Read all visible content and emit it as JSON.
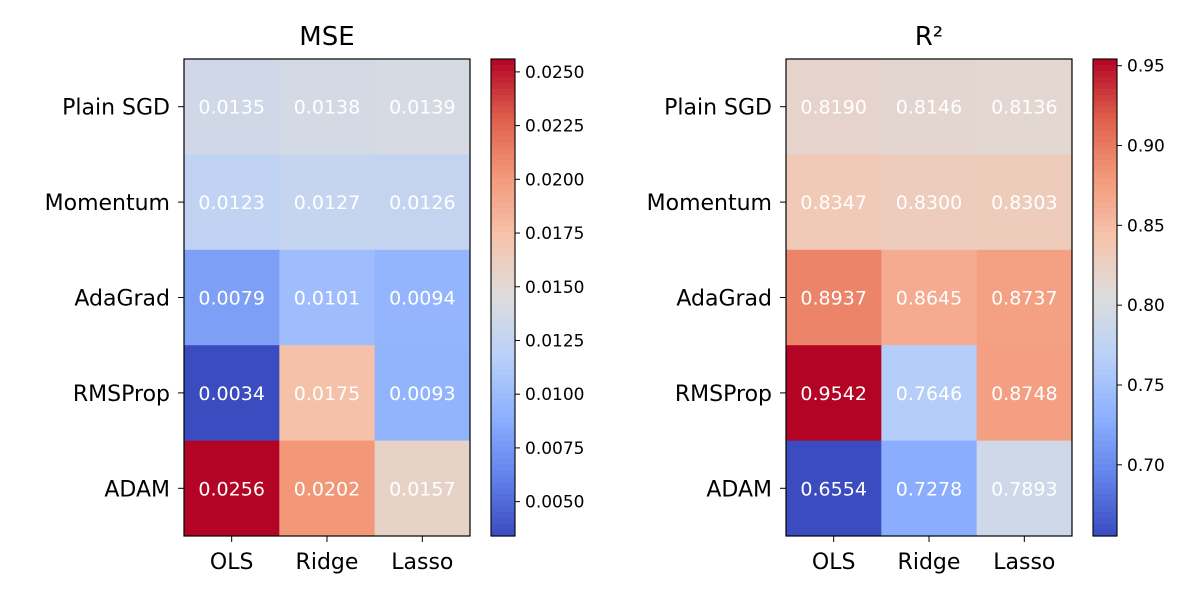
{
  "chart_data": [
    {
      "type": "heatmap",
      "title": "MSE",
      "rows": [
        "Plain SGD",
        "Momentum",
        "AdaGrad",
        "RMSProp",
        "ADAM"
      ],
      "columns": [
        "OLS",
        "Ridge",
        "Lasso"
      ],
      "values": [
        [
          0.0135,
          0.0138,
          0.0139
        ],
        [
          0.0123,
          0.0127,
          0.0126
        ],
        [
          0.0079,
          0.0101,
          0.0094
        ],
        [
          0.0034,
          0.0175,
          0.0093
        ],
        [
          0.0256,
          0.0202,
          0.0157
        ]
      ],
      "cell_labels": [
        [
          "0.0135",
          "0.0138",
          "0.0139"
        ],
        [
          "0.0123",
          "0.0127",
          "0.0126"
        ],
        [
          "0.0079",
          "0.0101",
          "0.0094"
        ],
        [
          "0.0034",
          "0.0175",
          "0.0093"
        ],
        [
          "0.0256",
          "0.0202",
          "0.0157"
        ]
      ],
      "colormap": "coolwarm",
      "colorbar": {
        "range": [
          0.0034,
          0.0256
        ],
        "ticks": [
          0.005,
          0.0075,
          0.01,
          0.0125,
          0.015,
          0.0175,
          0.02,
          0.0225,
          0.025
        ],
        "tick_labels": [
          "0.0050",
          "0.0075",
          "0.0100",
          "0.0125",
          "0.0150",
          "0.0175",
          "0.0200",
          "0.0225",
          "0.0250"
        ]
      }
    },
    {
      "type": "heatmap",
      "title": "R²",
      "rows": [
        "Plain SGD",
        "Momentum",
        "AdaGrad",
        "RMSProp",
        "ADAM"
      ],
      "columns": [
        "OLS",
        "Ridge",
        "Lasso"
      ],
      "values": [
        [
          0.819,
          0.8146,
          0.8136
        ],
        [
          0.8347,
          0.83,
          0.8303
        ],
        [
          0.8937,
          0.8645,
          0.8737
        ],
        [
          0.9542,
          0.7646,
          0.8748
        ],
        [
          0.6554,
          0.7278,
          0.7893
        ]
      ],
      "cell_labels": [
        [
          "0.8190",
          "0.8146",
          "0.8136"
        ],
        [
          "0.8347",
          "0.8300",
          "0.8303"
        ],
        [
          "0.8937",
          "0.8645",
          "0.8737"
        ],
        [
          "0.9542",
          "0.7646",
          "0.8748"
        ],
        [
          "0.6554",
          "0.7278",
          "0.7893"
        ]
      ],
      "colormap": "coolwarm",
      "colorbar": {
        "range": [
          0.6554,
          0.9542
        ],
        "ticks": [
          0.7,
          0.75,
          0.8,
          0.85,
          0.9,
          0.95
        ],
        "tick_labels": [
          "0.70",
          "0.75",
          "0.80",
          "0.85",
          "0.90",
          "0.95"
        ]
      }
    }
  ],
  "colors": {
    "cell_text": "#ffffff",
    "axis": "#000000",
    "background": "#ffffff"
  }
}
